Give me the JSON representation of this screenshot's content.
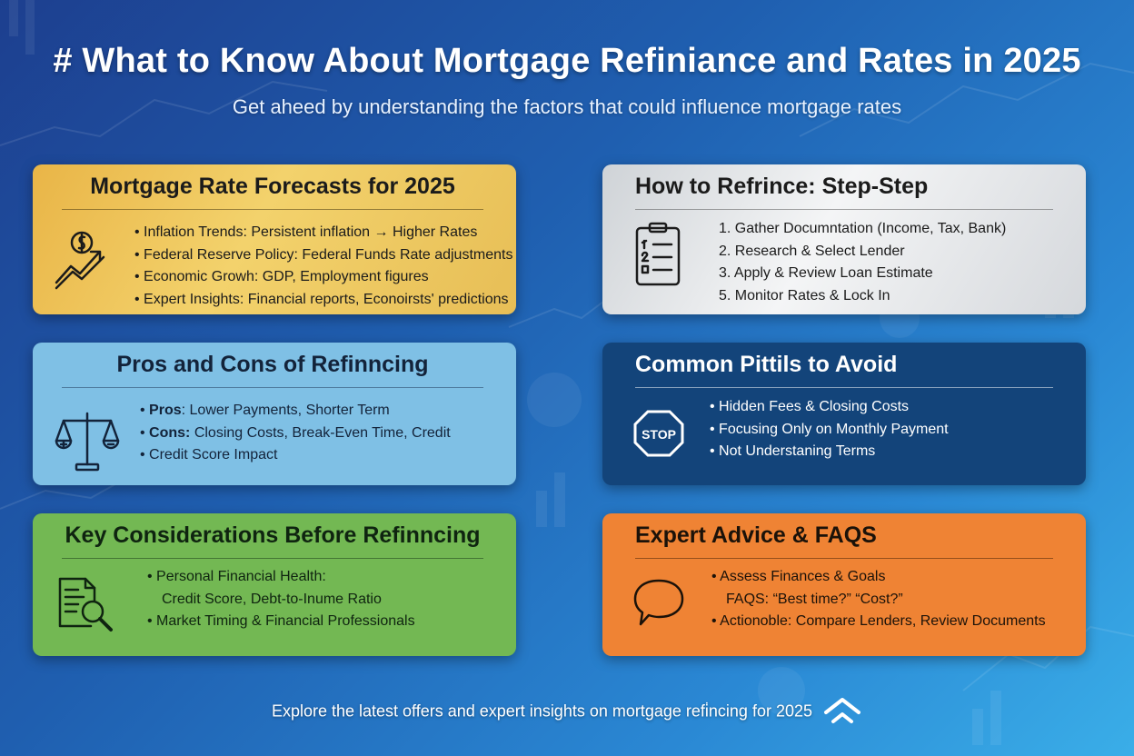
{
  "title": "# What to Know About Mortgage Refiniance and Rates in 2025",
  "subtitle": "Get aheed by understanding the factors that could influence mortgage rates",
  "cards": {
    "forecast": {
      "heading": "Mortgage Rate Forecasts for 2025",
      "icon": "dollar-growth-arrow-icon",
      "items": [
        "Inflation Trends: Persistent inflation → Higher Rates",
        "Federal Reserve Policy: Federal Funds Rate adjustments",
        "Economic Growh: GDP, Employment figures",
        "Expert Insights: Financial reports, Econoirsts' predictions"
      ]
    },
    "refinance": {
      "heading": "How to Refrince: Step-Step",
      "icon": "checklist-clipboard-icon",
      "steps": [
        "1.  Gather Documntation (Income, Tax, Bank)",
        "2. Research & Select Lender",
        "3. Apply & Review Loan Estimate",
        "5. Monitor Rates & Lock In"
      ]
    },
    "pros_cons": {
      "heading": "Pros and Cons of Refinncing",
      "icon": "balance-scale-icon",
      "items": [
        {
          "label": "Pros",
          "text": ": Lower Payments, Shorter Term"
        },
        {
          "label": "Cons:",
          "text": " Closing Costs, Break-Even Time, Credit"
        },
        {
          "label": "",
          "text": "Credit Score Impact"
        }
      ]
    },
    "pitfalls": {
      "heading": "Common Pittils to Avoid",
      "icon": "stop-sign-icon",
      "stop_text": "STOP",
      "items": [
        "Hidden Fees & Closing Costs",
        "Focusing Only on Monthly Payment",
        "Not Understaning Terms"
      ]
    },
    "considerations": {
      "heading": "Key Considerations Before Refinncing",
      "icon": "document-magnifier-icon",
      "items": [
        "Personal Financial Health:",
        "Credit Score, Debt-to-Inume Ratio",
        "Market Timing & Financial Professionals"
      ]
    },
    "expert": {
      "heading": "Expert Advice & FAQS",
      "icon": "speech-bubble-icon",
      "items": [
        "Assess Finances & Goals",
        "FAQS: “Best time?” “Cost?”",
        "Actionoble: Compare Lenders, Review Documents"
      ]
    }
  },
  "footer": "Explore the latest offers and expert insights on mortgage refi̇ncing for 2025",
  "colors": {
    "background_start": "#1d3f8f",
    "background_end": "#3aaee8",
    "forecast_card": "#f3d26c",
    "refinance_card": "#f4f5f6",
    "pros_cons_card": "#7fc0e5",
    "pitfalls_card": "#13447a",
    "considerations_card": "#73b853",
    "expert_card": "#ef8334"
  }
}
